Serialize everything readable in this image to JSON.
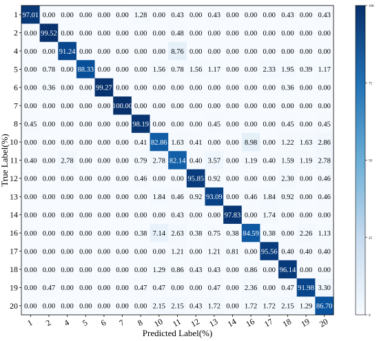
{
  "chart_data": {
    "type": "heatmap",
    "title": "",
    "xlabel": "Predicted Label(%)",
    "ylabel": "True Label(%)",
    "categories": [
      "1",
      "2",
      "4",
      "5",
      "6",
      "7",
      "8",
      "10",
      "11",
      "12",
      "13",
      "14",
      "16",
      "17",
      "18",
      "19",
      "20"
    ],
    "rows": [
      "1",
      "2",
      "4",
      "5",
      "6",
      "7",
      "8",
      "10",
      "11",
      "12",
      "13",
      "14",
      "16",
      "17",
      "18",
      "19",
      "20"
    ],
    "values": [
      [
        97.01,
        0.0,
        0.0,
        0.0,
        0.0,
        0.0,
        1.28,
        0.0,
        0.43,
        0.0,
        0.43,
        0.0,
        0.0,
        0.0,
        0.43,
        0.0,
        0.43
      ],
      [
        0.0,
        99.52,
        0.0,
        0.0,
        0.0,
        0.0,
        0.0,
        0.0,
        0.48,
        0.0,
        0.0,
        0.0,
        0.0,
        0.0,
        0.0,
        0.0,
        0.0
      ],
      [
        0.0,
        0.0,
        91.24,
        0.0,
        0.0,
        0.0,
        0.0,
        0.0,
        8.76,
        0.0,
        0.0,
        0.0,
        0.0,
        0.0,
        0.0,
        0.0,
        0.0
      ],
      [
        0.0,
        0.78,
        0.0,
        88.33,
        0.0,
        0.0,
        0.0,
        1.56,
        0.78,
        1.56,
        1.17,
        0.0,
        0.0,
        2.33,
        1.95,
        0.39,
        1.17
      ],
      [
        0.0,
        0.36,
        0.0,
        0.0,
        99.27,
        0.0,
        0.0,
        0.0,
        0.0,
        0.0,
        0.0,
        0.0,
        0.0,
        0.0,
        0.36,
        0.0,
        0.0
      ],
      [
        0.0,
        0.0,
        0.0,
        0.0,
        0.0,
        100.0,
        0.0,
        0.0,
        0.0,
        0.0,
        0.0,
        0.0,
        0.0,
        0.0,
        0.0,
        0.0,
        0.0
      ],
      [
        0.45,
        0.0,
        0.0,
        0.0,
        0.0,
        0.0,
        98.19,
        0.0,
        0.0,
        0.0,
        0.45,
        0.0,
        0.0,
        0.0,
        0.45,
        0.0,
        0.45
      ],
      [
        0.0,
        0.0,
        0.0,
        0.0,
        0.0,
        0.0,
        0.41,
        82.86,
        1.63,
        0.41,
        0.0,
        0.0,
        8.98,
        0.0,
        1.22,
        1.63,
        2.86
      ],
      [
        0.4,
        0.0,
        2.78,
        0.0,
        0.0,
        0.0,
        0.79,
        2.78,
        82.14,
        0.4,
        3.57,
        0.0,
        1.19,
        0.4,
        1.59,
        1.19,
        2.78
      ],
      [
        0.0,
        0.0,
        0.0,
        0.0,
        0.0,
        0.0,
        0.46,
        0.0,
        0.0,
        95.85,
        0.92,
        0.0,
        0.0,
        0.0,
        2.3,
        0.0,
        0.46
      ],
      [
        0.0,
        0.0,
        0.0,
        0.0,
        0.0,
        0.0,
        0.0,
        1.84,
        0.46,
        0.92,
        93.09,
        0.0,
        0.46,
        1.84,
        0.92,
        0.0,
        0.46
      ],
      [
        0.0,
        0.0,
        0.0,
        0.0,
        0.0,
        0.0,
        0.0,
        0.0,
        0.43,
        0.0,
        0.0,
        97.83,
        0.0,
        1.74,
        0.0,
        0.0,
        0.0
      ],
      [
        0.0,
        0.0,
        0.0,
        0.0,
        0.0,
        0.0,
        0.38,
        7.14,
        2.63,
        0.38,
        0.75,
        0.38,
        84.59,
        0.38,
        0.0,
        2.26,
        1.13
      ],
      [
        0.0,
        0.0,
        0.0,
        0.0,
        0.0,
        0.0,
        0.0,
        0.0,
        1.21,
        0.0,
        1.21,
        0.81,
        0.0,
        95.56,
        0.4,
        0.4,
        0.4
      ],
      [
        0.0,
        0.0,
        0.0,
        0.0,
        0.0,
        0.0,
        0.0,
        1.29,
        0.86,
        0.43,
        0.43,
        0.0,
        0.86,
        0.0,
        96.14,
        0.0,
        0.0
      ],
      [
        0.0,
        0.47,
        0.0,
        0.0,
        0.0,
        0.0,
        0.47,
        0.47,
        0.0,
        0.0,
        0.47,
        0.0,
        2.36,
        0.0,
        0.47,
        91.98,
        3.3
      ],
      [
        0.0,
        0.0,
        0.0,
        0.0,
        0.0,
        0.0,
        0.0,
        2.15,
        2.15,
        0.43,
        1.72,
        0.0,
        1.72,
        1.72,
        2.15,
        1.29,
        86.7
      ]
    ],
    "colorbar": {
      "min": 0,
      "max": 100,
      "ticks": [
        0,
        25,
        50,
        75,
        100
      ]
    },
    "colors": {
      "low": "#f7fbff",
      "high": "#08306b",
      "text_dark": "#000000",
      "text_light": "#ffffff"
    },
    "grid": false,
    "legend": "colorbar-right"
  }
}
